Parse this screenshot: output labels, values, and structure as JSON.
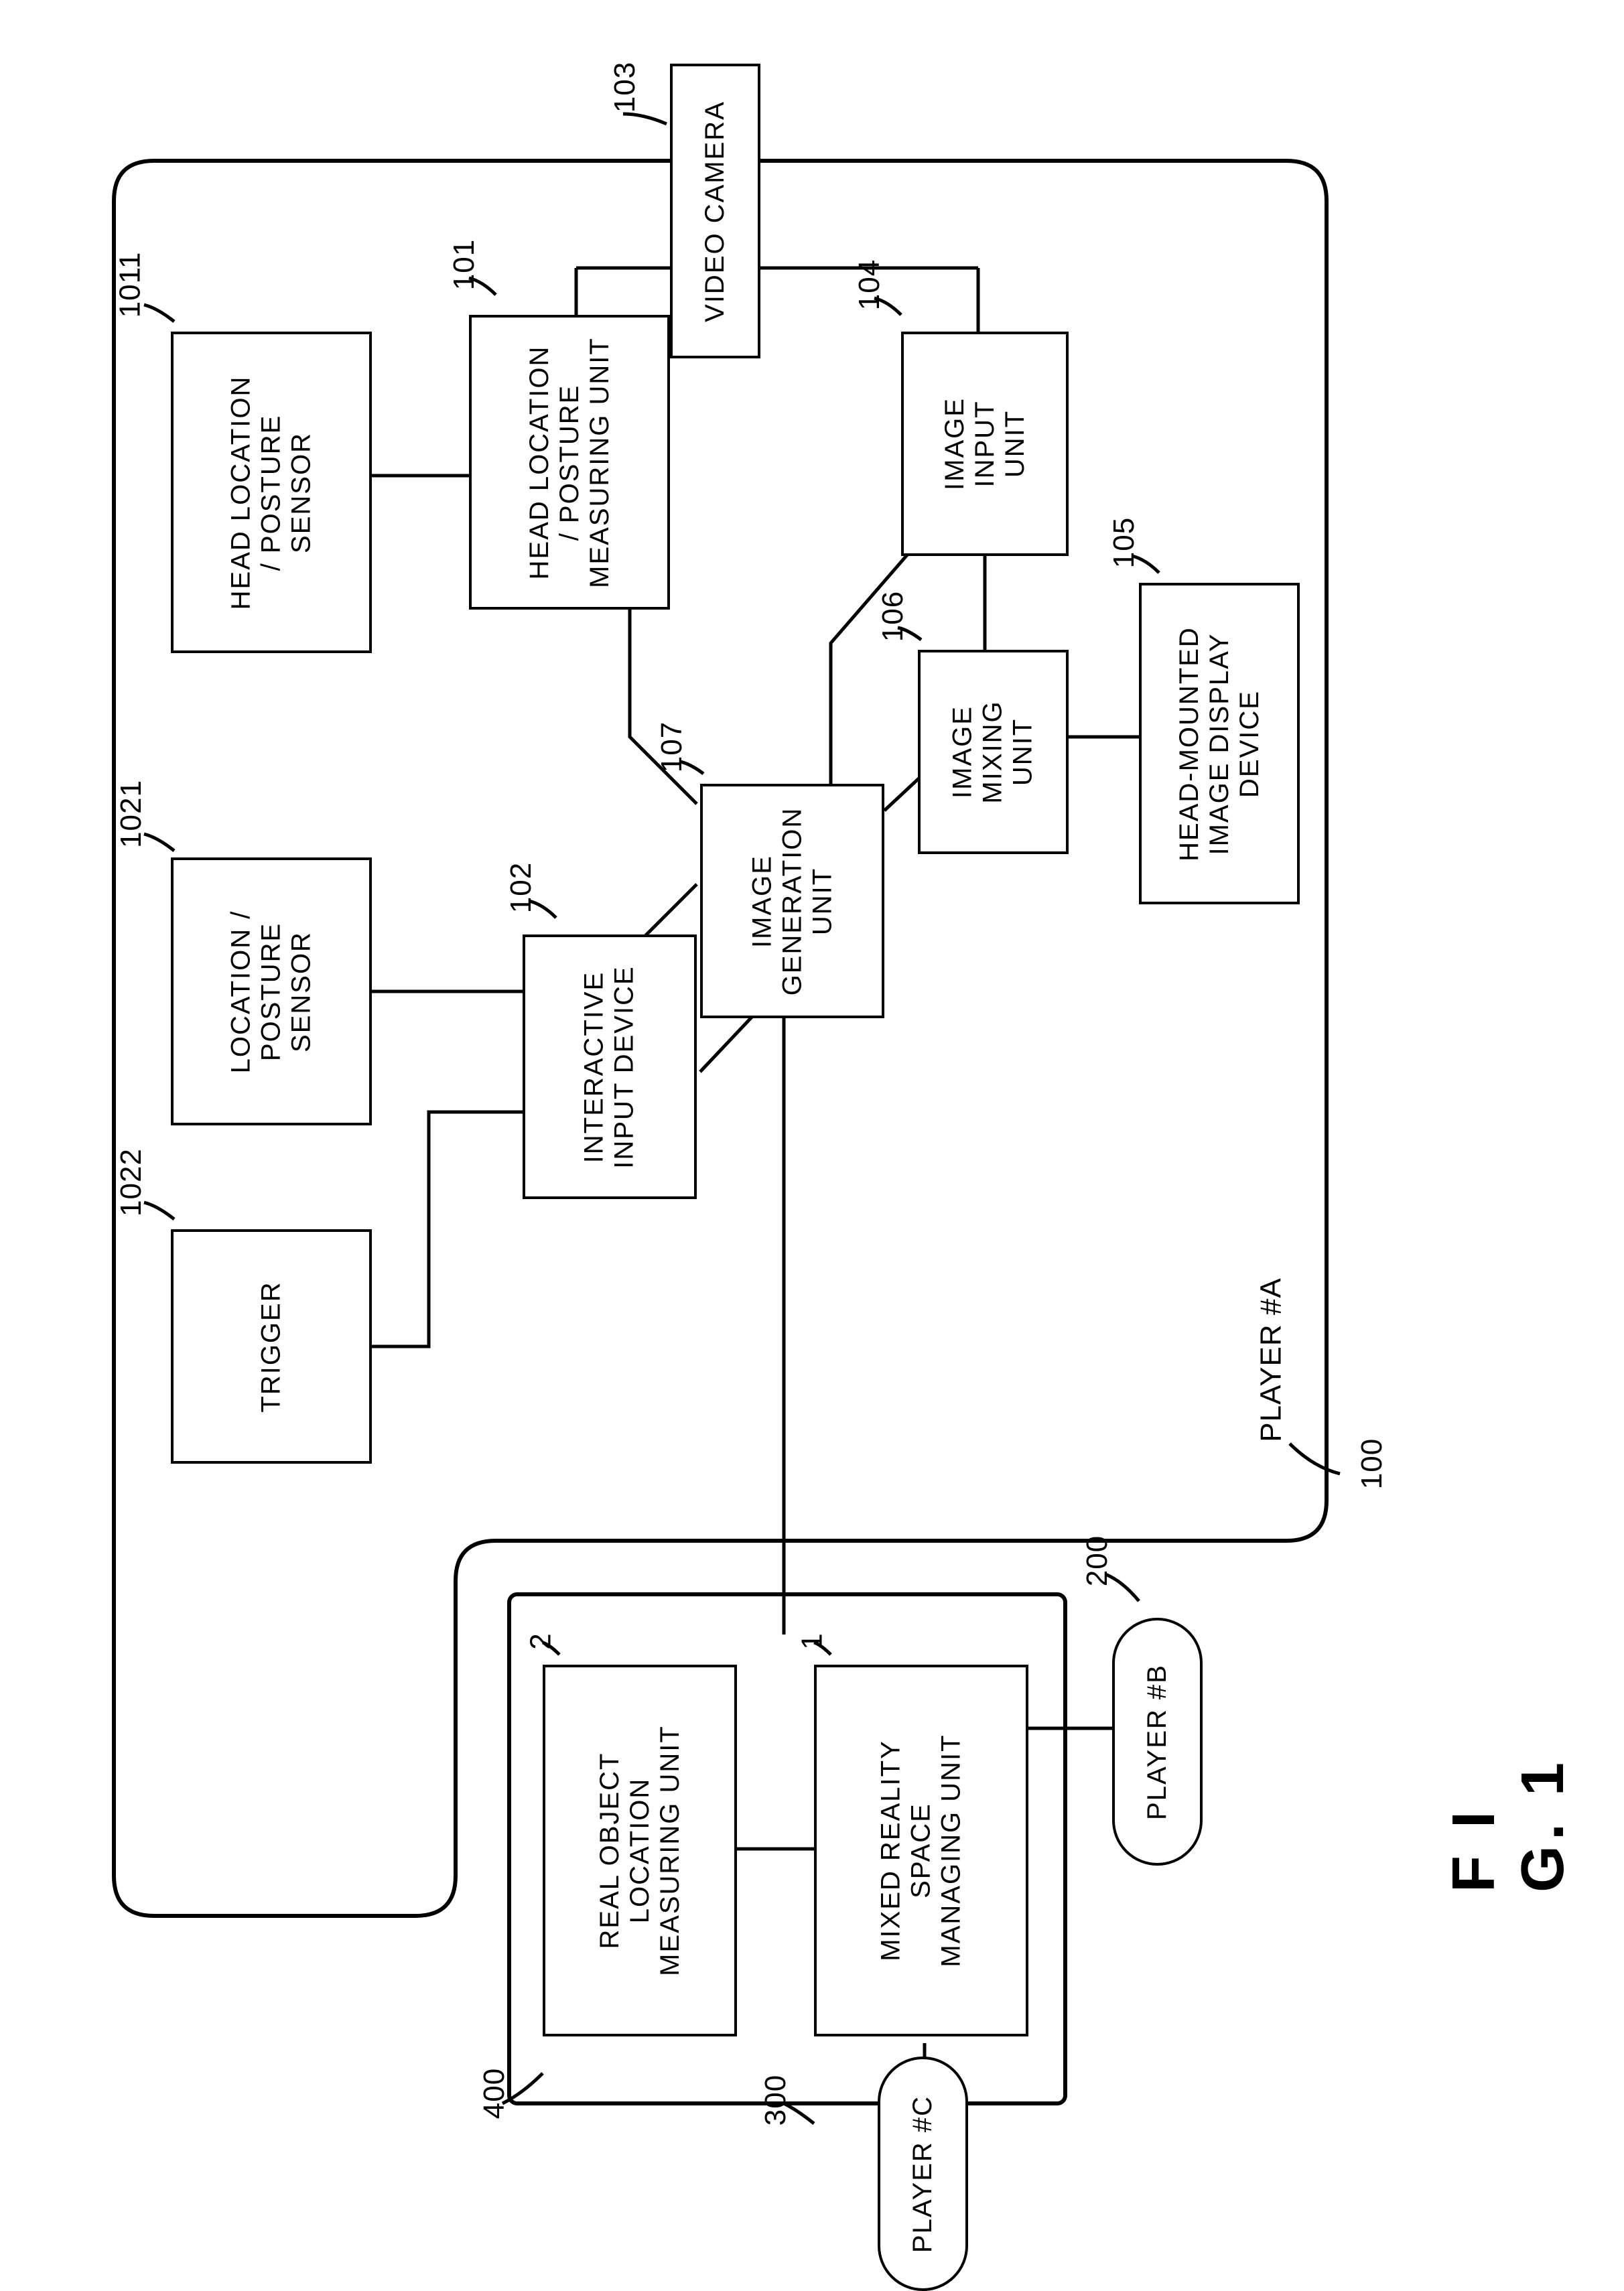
{
  "figure_label": "F I G.   1",
  "blocks": {
    "video_camera": {
      "id": "103",
      "text": "VIDEO CAMERA"
    },
    "head_sensor": {
      "id": "1011",
      "text": "HEAD LOCATION\n/ POSTURE\nSENSOR"
    },
    "loc_sensor": {
      "id": "1021",
      "text": "LOCATION /\nPOSTURE\nSENSOR"
    },
    "trigger": {
      "id": "1022",
      "text": "TRIGGER"
    },
    "head_meas": {
      "id": "101",
      "text": "HEAD LOCATION\n/ POSTURE\nMEASURING UNIT"
    },
    "interactive": {
      "id": "102",
      "text": "INTERACTIVE\nINPUT DEVICE"
    },
    "img_input": {
      "id": "104",
      "text": "IMAGE\nINPUT\nUNIT"
    },
    "img_gen": {
      "id": "107",
      "text": "IMAGE\nGENERATION\nUNIT"
    },
    "img_mix": {
      "id": "106",
      "text": "IMAGE\nMIXING\nUNIT"
    },
    "hmd": {
      "id": "105",
      "text": "HEAD-MOUNTED\nIMAGE DISPLAY\nDEVICE"
    },
    "real_obj": {
      "id": "2",
      "text": "REAL OBJECT\nLOCATION\nMEASURING UNIT"
    },
    "mr_mgr": {
      "id": "1",
      "text": "MIXED REALITY\nSPACE\nMANAGING UNIT"
    }
  },
  "pills": {
    "player_b": "PLAYER #B",
    "player_c": "PLAYER #C"
  },
  "labels": {
    "player_a": "PLAYER #A",
    "outer_100": "100",
    "outer_400": "400",
    "pill_b_200": "200",
    "pill_c_300": "300"
  },
  "style": {
    "stroke": "#000000",
    "stroke_width": 4,
    "rounded_r": 60,
    "text_color": "#000000",
    "bg": "#ffffff"
  }
}
